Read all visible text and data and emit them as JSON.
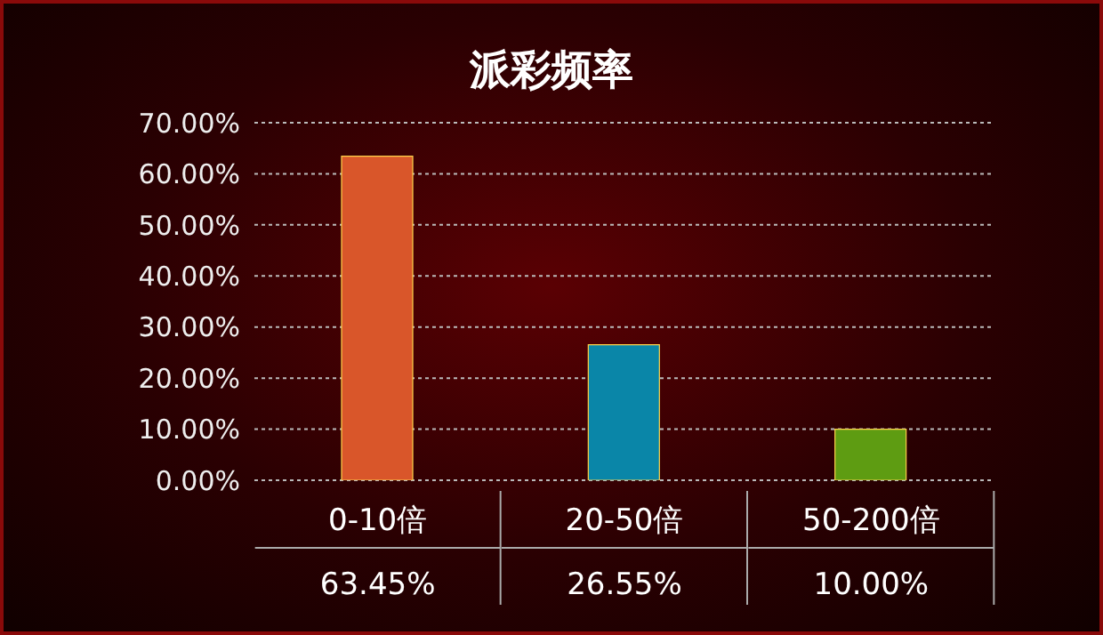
{
  "chart_data": {
    "type": "bar",
    "title": "派彩频率",
    "categories": [
      "0-10倍",
      "20-50倍",
      "50-200倍"
    ],
    "values": [
      63.45,
      26.55,
      10.0
    ],
    "colors": [
      "#d9562a",
      "#0a86a8",
      "#5e9c12"
    ],
    "value_labels": [
      "63.45%",
      "26.55%",
      "10.00%"
    ],
    "ylim": [
      0,
      70
    ],
    "yticks": [
      {
        "value": 0,
        "label": "0.00%"
      },
      {
        "value": 10,
        "label": "10.00%"
      },
      {
        "value": 20,
        "label": "20.00%"
      },
      {
        "value": 30,
        "label": "30.00%"
      },
      {
        "value": 40,
        "label": "40.00%"
      },
      {
        "value": 50,
        "label": "50.00%"
      },
      {
        "value": 60,
        "label": "60.00%"
      },
      {
        "value": 70,
        "label": "70.00%"
      }
    ],
    "grid": "y"
  }
}
